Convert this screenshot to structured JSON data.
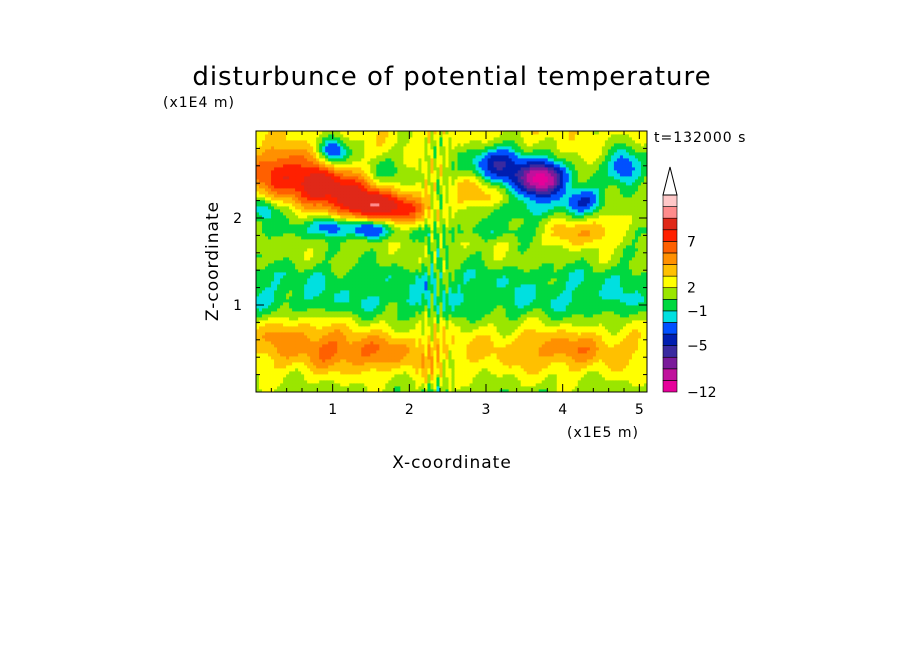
{
  "chart_data": {
    "type": "heatmap",
    "title": "disturbunce of potential temperature",
    "xlabel": "X-coordinate",
    "ylabel": "Z-coordinate",
    "x_unit": "(x1E5 m)",
    "y_unit": "(x1E4 m)",
    "time_label": "t=132000 s",
    "xlim": [
      0,
      5.1
    ],
    "ylim": [
      0,
      3.0
    ],
    "x_ticks": [
      1,
      2,
      3,
      4,
      5
    ],
    "x_tick_labels": [
      "1",
      "2",
      "3",
      "4",
      "5"
    ],
    "y_ticks": [
      1,
      2
    ],
    "y_tick_labels": [
      "1",
      "2"
    ],
    "colorbar": {
      "colors": [
        "#e6009a",
        "#c0109c",
        "#7a1a9a",
        "#3a2aa0",
        "#001eb0",
        "#0050ff",
        "#00e0e0",
        "#00d840",
        "#9ae600",
        "#ffff00",
        "#ffc000",
        "#ff9000",
        "#ff6000",
        "#ff2000",
        "#e02818",
        "#ff8c8c",
        "#ffc8c8"
      ],
      "tick_labels": [
        "-12",
        "-5",
        "-1",
        "2",
        "7"
      ],
      "tick_levels": [
        0,
        4,
        7,
        9,
        13
      ]
    },
    "field_description": "layered anomaly: positive (yellow/orange) near surface, cyan negative band around z=1.1, mixed green/yellow, strong positive red band aloft near x=1-2 and z=2.3, negative blue/purple cells near z=2.4-2.7",
    "blobs": [
      {
        "x": 0.4,
        "z": 2.55,
        "v": 4.2,
        "sx": 0.5,
        "sz": 0.18
      },
      {
        "x": 1.0,
        "z": 2.35,
        "v": 4.8,
        "sx": 0.45,
        "sz": 0.15
      },
      {
        "x": 1.5,
        "z": 2.15,
        "v": 5.5,
        "sx": 0.35,
        "sz": 0.12
      },
      {
        "x": 1.9,
        "z": 2.05,
        "v": 2.5,
        "sx": 0.3,
        "sz": 0.12
      },
      {
        "x": 4.3,
        "z": 1.85,
        "v": 3.5,
        "sx": 0.35,
        "sz": 0.1
      },
      {
        "x": 3.0,
        "z": 2.3,
        "v": 2.0,
        "sx": 0.3,
        "sz": 0.15
      },
      {
        "x": 1.0,
        "z": 2.75,
        "v": -5.5,
        "sx": 0.13,
        "sz": 0.12
      },
      {
        "x": 1.6,
        "z": 2.5,
        "v": -2.0,
        "sx": 0.2,
        "sz": 0.15
      },
      {
        "x": 1.45,
        "z": 1.88,
        "v": -4.5,
        "sx": 0.15,
        "sz": 0.07
      },
      {
        "x": 0.95,
        "z": 1.92,
        "v": -3.0,
        "sx": 0.15,
        "sz": 0.07
      },
      {
        "x": 3.15,
        "z": 2.65,
        "v": -5.0,
        "sx": 0.25,
        "sz": 0.13
      },
      {
        "x": 3.75,
        "z": 2.45,
        "v": -8.5,
        "sx": 0.18,
        "sz": 0.12
      },
      {
        "x": 3.55,
        "z": 2.45,
        "v": -4.5,
        "sx": 0.3,
        "sz": 0.15
      },
      {
        "x": 4.25,
        "z": 2.2,
        "v": -4.5,
        "sx": 0.2,
        "sz": 0.1
      },
      {
        "x": 4.8,
        "z": 2.6,
        "v": -4.5,
        "sx": 0.15,
        "sz": 0.15
      },
      {
        "x": 3.4,
        "z": 2.1,
        "v": -2.0,
        "sx": 0.3,
        "sz": 0.1
      },
      {
        "x": 0.1,
        "z": 2.1,
        "v": -3.0,
        "sx": 0.1,
        "sz": 0.1
      },
      {
        "x": 1.3,
        "z": 0.45,
        "v": 2.2,
        "sx": 0.6,
        "sz": 0.15
      },
      {
        "x": 4.0,
        "z": 0.5,
        "v": 1.8,
        "sx": 0.5,
        "sz": 0.15
      },
      {
        "x": 0.5,
        "z": 0.7,
        "v": 1.6,
        "sx": 0.5,
        "sz": 0.15
      }
    ]
  }
}
